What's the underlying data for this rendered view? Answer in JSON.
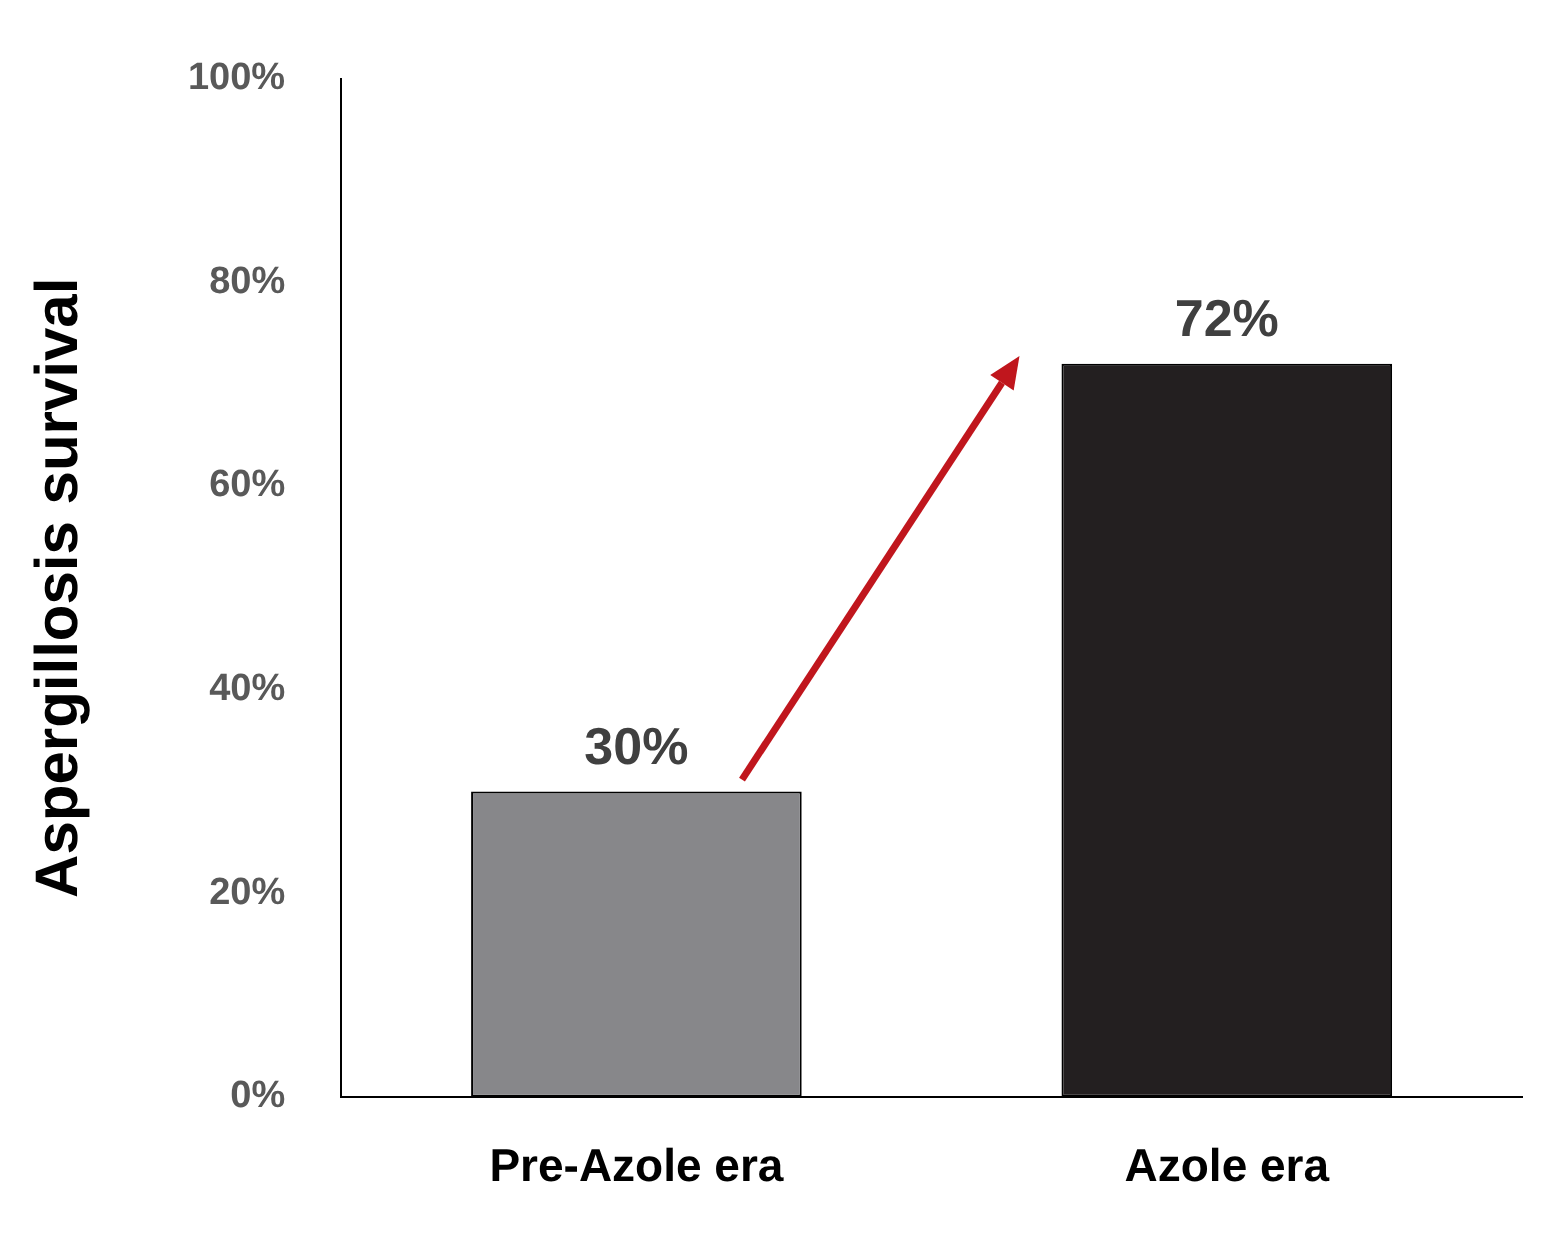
{
  "chart_data": {
    "type": "bar",
    "ylabel": "Aspergillosis survival",
    "categories": [
      "Pre-Azole era",
      "Azole era"
    ],
    "values": [
      30,
      72
    ],
    "colors": [
      "#87878a",
      "#231f20"
    ],
    "value_labels": [
      "30%",
      "72%"
    ],
    "ylim": [
      0,
      100
    ],
    "yticks": [
      {
        "value": 0,
        "label": "0%"
      },
      {
        "value": 20,
        "label": "20%"
      },
      {
        "value": 40,
        "label": "40%"
      },
      {
        "value": 60,
        "label": "60%"
      },
      {
        "value": 80,
        "label": "80%"
      },
      {
        "value": 100,
        "label": "100%"
      }
    ]
  }
}
